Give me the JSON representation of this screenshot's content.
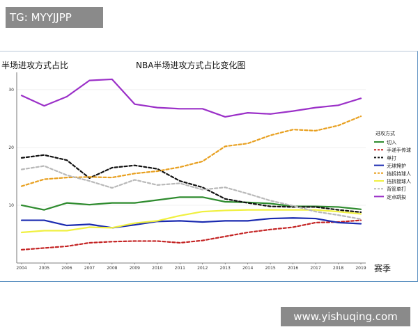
{
  "watermark_top": "TG: MYYJJPP",
  "watermark_bottom": "www.yishuqing.com",
  "chart_data": {
    "type": "line",
    "title": "NBA半场进攻方式占比变化图",
    "ylabel": "半场进攻方式占比",
    "xlabel": "赛季",
    "x": [
      2004,
      2005,
      2006,
      2007,
      2008,
      2009,
      2010,
      2011,
      2012,
      2013,
      2014,
      2015,
      2016,
      2017,
      2018,
      2019
    ],
    "ylim": [
      0,
      33
    ],
    "yticks": [
      10,
      20,
      30
    ],
    "grid": true,
    "legend_title": "进攻方式",
    "legend_position": "right",
    "series": [
      {
        "name": "切入",
        "color": "#2e8b2e",
        "dash": "solid",
        "values": [
          10.0,
          9.2,
          10.4,
          10.1,
          10.4,
          10.4,
          10.9,
          11.4,
          11.4,
          10.6,
          10.5,
          10.3,
          9.8,
          9.8,
          9.7,
          9.3
        ]
      },
      {
        "name": "手递手传球",
        "color": "#c42424",
        "dash": "dashed",
        "values": [
          2.3,
          2.6,
          2.9,
          3.5,
          3.7,
          3.8,
          3.8,
          3.5,
          3.9,
          4.6,
          5.3,
          5.8,
          6.2,
          7.0,
          7.1,
          7.4
        ]
      },
      {
        "name": "单打",
        "color": "#111111",
        "dash": "dashed",
        "values": [
          18.2,
          18.7,
          17.8,
          14.7,
          16.5,
          16.9,
          16.3,
          14.2,
          13.1,
          11.1,
          10.4,
          9.8,
          9.7,
          9.7,
          9.2,
          8.8
        ]
      },
      {
        "name": "无球掩护",
        "color": "#1a2ab0",
        "dash": "solid",
        "values": [
          7.4,
          7.4,
          6.5,
          6.7,
          6.1,
          6.6,
          7.2,
          7.3,
          7.1,
          7.3,
          7.3,
          7.7,
          7.8,
          7.7,
          7.0,
          6.8
        ]
      },
      {
        "name": "挡拆持球人",
        "color": "#e8a020",
        "dash": "dashed",
        "values": [
          13.3,
          14.5,
          14.8,
          14.9,
          14.8,
          15.5,
          15.9,
          16.6,
          17.6,
          20.2,
          20.7,
          22.1,
          23.1,
          22.9,
          23.8,
          25.4
        ]
      },
      {
        "name": "挡拆接球人",
        "color": "#f0f040",
        "dash": "solid",
        "values": [
          5.3,
          5.6,
          5.6,
          6.2,
          6.1,
          6.9,
          7.3,
          8.2,
          8.9,
          9.1,
          9.2,
          9.2,
          9.2,
          9.2,
          8.9,
          8.5
        ]
      },
      {
        "name": "背筐单打",
        "color": "#b8b8b8",
        "dash": "dashed",
        "values": [
          16.2,
          16.8,
          15.2,
          14.2,
          13.0,
          14.4,
          13.5,
          13.8,
          12.7,
          13.1,
          12.0,
          10.8,
          9.9,
          8.9,
          8.3,
          7.6
        ]
      },
      {
        "name": "定点跳投",
        "color": "#9b30c8",
        "dash": "solid",
        "values": [
          29.0,
          27.2,
          28.8,
          31.6,
          31.8,
          27.5,
          26.9,
          26.7,
          26.7,
          25.3,
          26.0,
          25.8,
          26.3,
          26.9,
          27.3,
          28.5
        ]
      }
    ]
  }
}
